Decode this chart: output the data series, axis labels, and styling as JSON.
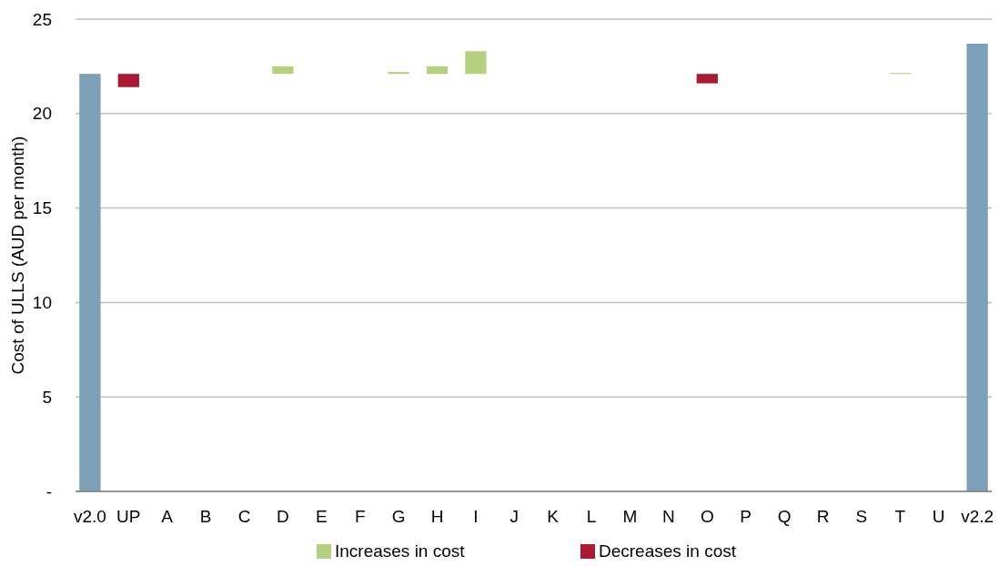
{
  "chart_data": {
    "type": "bar",
    "ylabel": "Cost of ULLS (AUD per month)",
    "categories": [
      "v2.0",
      "UP",
      "A",
      "B",
      "C",
      "D",
      "E",
      "F",
      "G",
      "H",
      "I",
      "J",
      "K",
      "L",
      "M",
      "N",
      "O",
      "P",
      "Q",
      "R",
      "S",
      "T",
      "U",
      "v2.2"
    ],
    "series": [
      {
        "color": "#7ba0b8",
        "values": [
          22.1,
          null,
          null,
          null,
          null,
          null,
          null,
          null,
          null,
          null,
          null,
          null,
          null,
          null,
          null,
          null,
          null,
          null,
          null,
          null,
          null,
          null,
          null,
          23.7
        ]
      },
      {
        "name": "Increases in cost",
        "color": "#b3d17f",
        "base": [
          null,
          null,
          null,
          null,
          null,
          22.1,
          null,
          null,
          22.1,
          22.1,
          22.1,
          null,
          null,
          null,
          null,
          null,
          null,
          null,
          null,
          null,
          null,
          22.1,
          null,
          null
        ],
        "values": [
          null,
          null,
          null,
          null,
          null,
          0.4,
          null,
          null,
          0.1,
          0.4,
          1.2,
          null,
          null,
          null,
          null,
          null,
          null,
          null,
          null,
          null,
          null,
          0.05,
          null,
          null
        ]
      },
      {
        "name": "Decreases in cost",
        "color": "#aa1a32",
        "base": [
          null,
          22.1,
          null,
          null,
          null,
          null,
          null,
          null,
          null,
          null,
          null,
          null,
          null,
          null,
          null,
          null,
          22.1,
          null,
          null,
          null,
          null,
          null,
          null,
          null
        ],
        "values": [
          null,
          -0.7,
          null,
          null,
          null,
          null,
          null,
          null,
          null,
          null,
          null,
          null,
          null,
          null,
          null,
          null,
          -0.5,
          null,
          null,
          null,
          null,
          null,
          null,
          null
        ]
      }
    ],
    "ylim": [
      0,
      25
    ],
    "yticks": [
      {
        "value": 0,
        "label": "-"
      },
      5,
      10,
      15,
      20,
      25
    ],
    "grid": "y",
    "legend": "bottom"
  }
}
